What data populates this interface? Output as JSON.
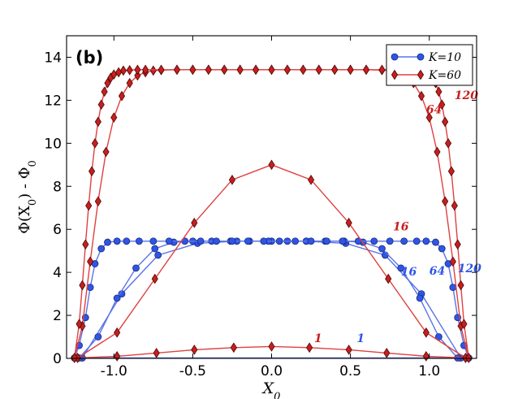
{
  "chart_data": {
    "type": "line",
    "panel_label": "(b)",
    "xlabel": "X_0",
    "ylabel": "Φ(X_0) - Φ_0",
    "xlim": [
      -1.3,
      1.3
    ],
    "ylim": [
      0,
      15
    ],
    "xticks": [
      "-1.0",
      "-0.5",
      "0.0",
      "0.5",
      "1.0"
    ],
    "xtick_values": [
      -1.0,
      -0.5,
      0.0,
      0.5,
      1.0
    ],
    "yticks": [
      "0",
      "2",
      "4",
      "6",
      "8",
      "10",
      "12",
      "14"
    ],
    "ytick_values": [
      0,
      2,
      4,
      6,
      8,
      10,
      12,
      14
    ],
    "legend": [
      {
        "label": "K=10",
        "color": "#1f3fd6",
        "marker": "circle"
      },
      {
        "label": "K=60",
        "color": "#d62020",
        "marker": "diamond"
      }
    ],
    "colors": {
      "blue_line": "#5a74e6",
      "blue_fill": "#2e56e6",
      "red_line": "#e04040",
      "red_fill": "#c81e1e"
    },
    "series": [
      {
        "name": "K=10, N=1",
        "group": "blue",
        "x": [
          -1.25,
          1.25
        ],
        "y": [
          0.02,
          0.02
        ]
      },
      {
        "name": "K=10, N=16",
        "group": "blue",
        "x": [
          -1.2,
          -0.95,
          -0.72,
          -0.47,
          -0.22,
          0.0,
          0.22,
          0.47,
          0.72,
          0.95,
          1.2
        ],
        "y": [
          0.02,
          3.0,
          4.8,
          5.35,
          5.45,
          5.45,
          5.45,
          5.35,
          4.8,
          3.0,
          0.02
        ]
      },
      {
        "name": "K=10, N=64",
        "group": "blue",
        "x": [
          -1.22,
          -1.1,
          -0.98,
          -0.86,
          -0.74,
          -0.62,
          -0.5,
          -0.38,
          -0.26,
          -0.14,
          -0.02,
          0.1,
          0.22,
          0.34,
          0.46,
          0.58,
          0.7,
          0.82,
          0.94,
          1.06,
          1.18
        ],
        "y": [
          0.02,
          1.0,
          2.8,
          4.2,
          5.1,
          5.4,
          5.45,
          5.45,
          5.45,
          5.45,
          5.45,
          5.45,
          5.45,
          5.45,
          5.45,
          5.4,
          5.1,
          4.2,
          2.8,
          1.0,
          0.02
        ]
      },
      {
        "name": "K=10, N=120",
        "group": "blue",
        "x": [
          -1.25,
          -1.22,
          -1.18,
          -1.15,
          -1.12,
          -1.08,
          -1.04,
          -0.98,
          -0.92,
          -0.84,
          -0.75,
          -0.65,
          -0.55,
          -0.45,
          -0.35,
          -0.25,
          -0.15,
          -0.05,
          0.05,
          0.15,
          0.25,
          0.35,
          0.45,
          0.55,
          0.65,
          0.75,
          0.84,
          0.92,
          0.98,
          1.04,
          1.08,
          1.12,
          1.15,
          1.18,
          1.22,
          1.25
        ],
        "y": [
          0.02,
          0.6,
          1.9,
          3.3,
          4.4,
          5.1,
          5.4,
          5.45,
          5.45,
          5.45,
          5.45,
          5.45,
          5.45,
          5.45,
          5.45,
          5.45,
          5.45,
          5.45,
          5.45,
          5.45,
          5.45,
          5.45,
          5.45,
          5.45,
          5.45,
          5.45,
          5.45,
          5.45,
          5.45,
          5.4,
          5.1,
          4.4,
          3.3,
          1.9,
          0.6,
          0.02
        ]
      },
      {
        "name": "K=60, N=1",
        "group": "red",
        "x": [
          -1.23,
          -0.98,
          -0.73,
          -0.49,
          -0.24,
          0.0,
          0.24,
          0.49,
          0.73,
          0.98,
          1.23
        ],
        "y": [
          0.02,
          0.1,
          0.25,
          0.4,
          0.5,
          0.55,
          0.5,
          0.4,
          0.25,
          0.1,
          0.02
        ]
      },
      {
        "name": "K=60, N=16",
        "group": "red",
        "x": [
          -1.23,
          -0.98,
          -0.74,
          -0.49,
          -0.25,
          0.0,
          0.25,
          0.49,
          0.74,
          0.98,
          1.23
        ],
        "y": [
          0.02,
          1.2,
          3.7,
          6.3,
          8.3,
          9.0,
          8.3,
          6.3,
          3.7,
          1.2,
          0.02
        ]
      },
      {
        "name": "K=60, N=64",
        "group": "red",
        "x": [
          -1.25,
          -1.2,
          -1.15,
          -1.1,
          -1.05,
          -1.0,
          -0.95,
          -0.9,
          -0.85,
          -0.8,
          -0.75,
          -0.7,
          -0.6,
          -0.5,
          -0.4,
          -0.3,
          -0.2,
          -0.1,
          0.0,
          0.1,
          0.2,
          0.3,
          0.4,
          0.5,
          0.6,
          0.7,
          0.75,
          0.8,
          0.85,
          0.9,
          0.95,
          1.0,
          1.05,
          1.1,
          1.15,
          1.2,
          1.25
        ],
        "y": [
          0.02,
          1.5,
          4.5,
          7.3,
          9.6,
          11.2,
          12.2,
          12.8,
          13.15,
          13.3,
          13.38,
          13.4,
          13.42,
          13.42,
          13.42,
          13.42,
          13.42,
          13.42,
          13.42,
          13.42,
          13.42,
          13.42,
          13.42,
          13.42,
          13.42,
          13.4,
          13.38,
          13.3,
          13.15,
          12.8,
          12.2,
          11.2,
          9.6,
          7.3,
          4.5,
          1.5,
          0.02
        ]
      },
      {
        "name": "K=60, N=120",
        "group": "red",
        "x": [
          -1.25,
          -1.22,
          -1.2,
          -1.18,
          -1.16,
          -1.14,
          -1.12,
          -1.1,
          -1.08,
          -1.06,
          -1.04,
          -1.02,
          -1.0,
          -0.97,
          -0.94,
          -0.9,
          -0.85,
          -0.8,
          -0.7,
          -0.6,
          -0.5,
          -0.4,
          -0.3,
          -0.2,
          -0.1,
          0.0,
          0.1,
          0.2,
          0.3,
          0.4,
          0.5,
          0.6,
          0.7,
          0.8,
          0.85,
          0.9,
          0.94,
          0.97,
          1.0,
          1.02,
          1.04,
          1.06,
          1.08,
          1.1,
          1.12,
          1.14,
          1.16,
          1.18,
          1.2,
          1.22,
          1.25
        ],
        "y": [
          0.02,
          1.6,
          3.4,
          5.3,
          7.1,
          8.7,
          10.0,
          11.0,
          11.8,
          12.4,
          12.8,
          13.05,
          13.2,
          13.3,
          13.38,
          13.4,
          13.42,
          13.42,
          13.42,
          13.42,
          13.42,
          13.42,
          13.42,
          13.42,
          13.42,
          13.42,
          13.42,
          13.42,
          13.42,
          13.42,
          13.42,
          13.42,
          13.42,
          13.42,
          13.42,
          13.4,
          13.38,
          13.3,
          13.2,
          13.05,
          12.8,
          12.4,
          11.8,
          11.0,
          10.0,
          8.7,
          7.1,
          5.3,
          3.4,
          1.6,
          0.02
        ]
      }
    ],
    "annotations": [
      {
        "text": "1",
        "group": "red",
        "x": 0.27,
        "y": 0.75
      },
      {
        "text": "1",
        "group": "blue",
        "x": 0.54,
        "y": 0.75
      },
      {
        "text": "16",
        "group": "red",
        "x": 0.77,
        "y": 5.95
      },
      {
        "text": "16",
        "group": "blue",
        "x": 0.82,
        "y": 3.85
      },
      {
        "text": "64",
        "group": "blue",
        "x": 1.0,
        "y": 3.9
      },
      {
        "text": "120",
        "group": "blue",
        "x": 1.18,
        "y": 4.0
      },
      {
        "text": "64",
        "group": "red",
        "x": 0.98,
        "y": 11.4
      },
      {
        "text": "120",
        "group": "red",
        "x": 1.16,
        "y": 12.05
      }
    ]
  }
}
